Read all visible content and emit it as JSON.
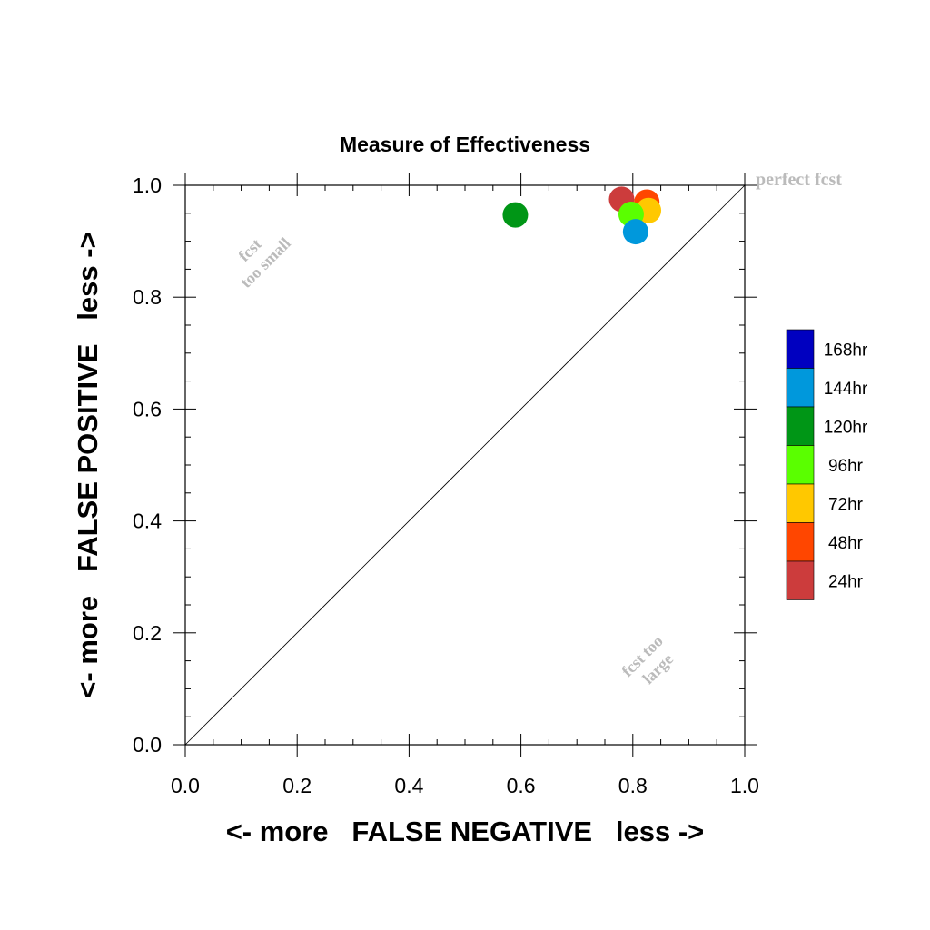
{
  "chart_data": {
    "type": "scatter",
    "title": "Measure of Effectiveness",
    "xlabel": "<- more   FALSE NEGATIVE   less ->",
    "ylabel": "<- more   FALSE POSITIVE   less ->",
    "xlim": [
      0.0,
      1.0
    ],
    "ylim": [
      0.0,
      1.0
    ],
    "xticks": [
      "0.0",
      "0.2",
      "0.4",
      "0.6",
      "0.8",
      "1.0"
    ],
    "yticks": [
      "0.0",
      "0.2",
      "0.4",
      "0.6",
      "0.8",
      "1.0"
    ],
    "grid": false,
    "diagonal_line": true,
    "annotations": {
      "perfect": "perfect fcst",
      "too_small": [
        "fcst",
        "too small"
      ],
      "too_large": [
        "fcst too",
        "large"
      ]
    },
    "legend": {
      "placement": "right",
      "entries": [
        {
          "label": "168hr",
          "color": "#0000c0"
        },
        {
          "label": "144hr",
          "color": "#0098dc"
        },
        {
          "label": "120hr",
          "color": "#009616"
        },
        {
          "label": "96hr",
          "color": "#5aff00"
        },
        {
          "label": "72hr",
          "color": "#ffc800"
        },
        {
          "label": "48hr",
          "color": "#ff4600"
        },
        {
          "label": "24hr",
          "color": "#cc3c3c"
        }
      ]
    },
    "points": [
      {
        "series": "24hr",
        "x": 0.78,
        "y": 0.975,
        "color": "#cc3c3c"
      },
      {
        "series": "48hr",
        "x": 0.825,
        "y": 0.97,
        "color": "#ff4600"
      },
      {
        "series": "72hr",
        "x": 0.828,
        "y": 0.955,
        "color": "#ffc800"
      },
      {
        "series": "96hr",
        "x": 0.797,
        "y": 0.948,
        "color": "#5aff00"
      },
      {
        "series": "120hr",
        "x": 0.59,
        "y": 0.947,
        "color": "#009616"
      },
      {
        "series": "144hr",
        "x": 0.805,
        "y": 0.917,
        "color": "#0098dc"
      }
    ]
  }
}
